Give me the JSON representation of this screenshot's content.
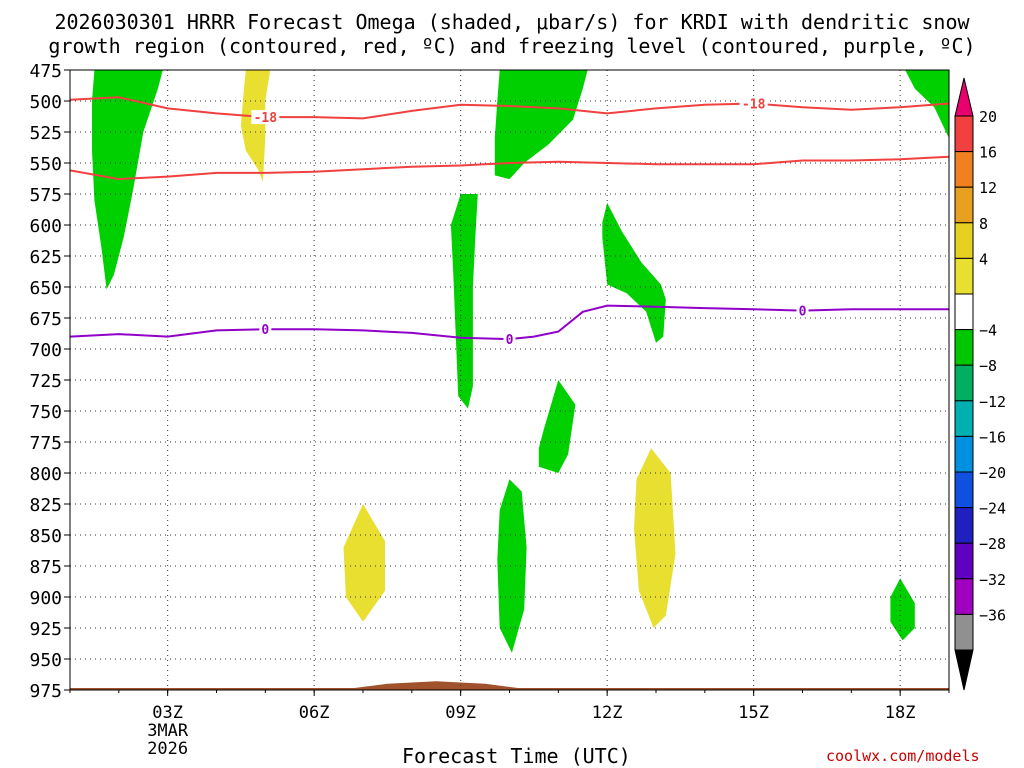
{
  "title": {
    "line1": "2026030301 HRRR Forecast Omega (shaded, μbar/s) for KRDI with dendritic snow",
    "line2": "growth region (contoured, red, ºC) and freezing level (contoured, purple, ºC)"
  },
  "xlabel": "Forecast Time (UTC)",
  "credit": "coolwx.com/models",
  "chart_data": {
    "type": "heatmap",
    "title": "2026030301 HRRR Forecast Omega (shaded, μbar/s) for KRDI with dendritic snow growth region (contoured, red, ºC) and freezing level (contoured, purple, ºC)",
    "xlabel": "Forecast Time (UTC)",
    "ylabel": "",
    "x_unit": "hours UTC from 00Z 3MAR2026",
    "xlim": [
      1,
      19
    ],
    "ylim": [
      975,
      475
    ],
    "y_ticks": [
      475,
      500,
      525,
      550,
      575,
      600,
      625,
      650,
      675,
      700,
      725,
      750,
      775,
      800,
      825,
      850,
      875,
      900,
      925,
      950,
      975
    ],
    "x_ticks": [
      {
        "x": 3,
        "label": "03Z"
      },
      {
        "x": 6,
        "label": "06Z"
      },
      {
        "x": 9,
        "label": "09Z"
      },
      {
        "x": 12,
        "label": "12Z"
      },
      {
        "x": 15,
        "label": "15Z"
      },
      {
        "x": 18,
        "label": "18Z"
      }
    ],
    "date_label": [
      "3MAR",
      "2026"
    ],
    "grid": true,
    "colorbar": {
      "labels": [
        "20",
        "16",
        "12",
        "8",
        "4",
        "−4",
        "−8",
        "−12",
        "−16",
        "−20",
        "−24",
        "−28",
        "−32",
        "−36"
      ],
      "colors": [
        "#e8006f",
        "#f04040",
        "#f08020",
        "#e8a020",
        "#e8d020",
        "#e8e030",
        "#ffffff",
        "#00c800",
        "#00b060",
        "#00b0b0",
        "#0090e0",
        "#1050e0",
        "#2020c0",
        "#6000c0",
        "#a000c0",
        "#909090",
        "#000000"
      ]
    },
    "shaded_regions": [
      {
        "level": "-8 to -4",
        "color": "#00d000",
        "points": [
          [
            1.5,
            475
          ],
          [
            2.9,
            475
          ],
          [
            2.8,
            490
          ],
          [
            2.5,
            525
          ],
          [
            2.3,
            570
          ],
          [
            2.1,
            610
          ],
          [
            1.9,
            640
          ],
          [
            1.75,
            652
          ],
          [
            1.65,
            620
          ],
          [
            1.5,
            580
          ],
          [
            1.45,
            540
          ],
          [
            1.45,
            500
          ]
        ]
      },
      {
        "level": "4 to 8",
        "color": "#e8df30",
        "points": [
          [
            4.6,
            475
          ],
          [
            5.1,
            475
          ],
          [
            5.0,
            500
          ],
          [
            5.0,
            530
          ],
          [
            4.95,
            565
          ],
          [
            4.85,
            555
          ],
          [
            4.6,
            540
          ],
          [
            4.5,
            520
          ],
          [
            4.55,
            495
          ]
        ]
      },
      {
        "level": "-8 to -4",
        "color": "#00d000",
        "points": [
          [
            9.8,
            475
          ],
          [
            11.6,
            475
          ],
          [
            11.5,
            490
          ],
          [
            11.3,
            515
          ],
          [
            10.8,
            535
          ],
          [
            10.3,
            550
          ],
          [
            10.0,
            563
          ],
          [
            9.7,
            560
          ],
          [
            9.7,
            530
          ],
          [
            9.75,
            500
          ]
        ]
      },
      {
        "level": "-8 to -4",
        "color": "#00d000",
        "points": [
          [
            18.1,
            475
          ],
          [
            19,
            475
          ],
          [
            19,
            530
          ],
          [
            18.7,
            505
          ],
          [
            18.3,
            490
          ]
        ]
      },
      {
        "level": "-8 to -4",
        "color": "#00d000",
        "points": [
          [
            9.0,
            575
          ],
          [
            9.35,
            575
          ],
          [
            9.3,
            610
          ],
          [
            9.25,
            650
          ],
          [
            9.25,
            700
          ],
          [
            9.25,
            730
          ],
          [
            9.15,
            748
          ],
          [
            8.95,
            738
          ],
          [
            8.9,
            690
          ],
          [
            8.85,
            640
          ],
          [
            8.8,
            600
          ]
        ]
      },
      {
        "level": "-8 to -4",
        "color": "#00d000",
        "points": [
          [
            12.0,
            582
          ],
          [
            12.3,
            605
          ],
          [
            12.7,
            630
          ],
          [
            13.1,
            648
          ],
          [
            13.2,
            660
          ],
          [
            13.15,
            690
          ],
          [
            13.0,
            695
          ],
          [
            12.8,
            670
          ],
          [
            12.4,
            655
          ],
          [
            12.0,
            648
          ],
          [
            11.9,
            610
          ],
          [
            11.9,
            598
          ]
        ]
      },
      {
        "level": "-8 to -4",
        "color": "#00d000",
        "points": [
          [
            10.7,
            765
          ],
          [
            11.0,
            725
          ],
          [
            11.35,
            745
          ],
          [
            11.2,
            785
          ],
          [
            11.0,
            800
          ],
          [
            10.6,
            795
          ],
          [
            10.6,
            780
          ]
        ]
      },
      {
        "level": "-8 to -4",
        "color": "#00d000",
        "points": [
          [
            10.0,
            805
          ],
          [
            10.25,
            815
          ],
          [
            10.35,
            860
          ],
          [
            10.3,
            910
          ],
          [
            10.05,
            945
          ],
          [
            9.8,
            925
          ],
          [
            9.75,
            870
          ],
          [
            9.8,
            830
          ]
        ]
      },
      {
        "level": "4 to 8",
        "color": "#e8df30",
        "points": [
          [
            12.9,
            780
          ],
          [
            13.3,
            800
          ],
          [
            13.4,
            865
          ],
          [
            13.2,
            915
          ],
          [
            12.95,
            925
          ],
          [
            12.65,
            895
          ],
          [
            12.55,
            845
          ],
          [
            12.6,
            805
          ]
        ]
      },
      {
        "level": "4 to 8",
        "color": "#e8df30",
        "points": [
          [
            7.0,
            825
          ],
          [
            7.45,
            855
          ],
          [
            7.45,
            895
          ],
          [
            7.0,
            920
          ],
          [
            6.65,
            900
          ],
          [
            6.6,
            860
          ]
        ]
      },
      {
        "level": "-8 to -4",
        "color": "#00d000",
        "points": [
          [
            18.0,
            885
          ],
          [
            18.3,
            905
          ],
          [
            18.3,
            925
          ],
          [
            18.05,
            935
          ],
          [
            17.8,
            920
          ],
          [
            17.8,
            900
          ]
        ]
      }
    ],
    "contours": [
      {
        "name": "-18",
        "color": "#f04040",
        "points": [
          [
            1,
            499
          ],
          [
            2,
            497
          ],
          [
            3,
            506
          ],
          [
            4,
            510
          ],
          [
            5,
            513
          ],
          [
            6,
            513
          ],
          [
            7,
            514
          ],
          [
            8,
            508
          ],
          [
            9,
            503
          ],
          [
            10,
            504
          ],
          [
            11,
            506
          ],
          [
            12,
            510
          ],
          [
            13,
            506
          ],
          [
            14,
            503
          ],
          [
            15,
            502
          ],
          [
            16,
            505
          ],
          [
            17,
            507
          ],
          [
            18,
            505
          ],
          [
            19,
            502
          ]
        ],
        "labels": [
          {
            "x": 5,
            "y": 513,
            "text": "-18"
          },
          {
            "x": 15,
            "y": 502,
            "text": "-18"
          }
        ]
      },
      {
        "name": "-18",
        "color": "#f04040",
        "points": [
          [
            1,
            556
          ],
          [
            2,
            563
          ],
          [
            3,
            561
          ],
          [
            4,
            558
          ],
          [
            5,
            558
          ],
          [
            6,
            557
          ],
          [
            7,
            555
          ],
          [
            8,
            553
          ],
          [
            9,
            552
          ],
          [
            10,
            550
          ],
          [
            11,
            549
          ],
          [
            12,
            550
          ],
          [
            13,
            551
          ],
          [
            14,
            551
          ],
          [
            15,
            551
          ],
          [
            16,
            548
          ],
          [
            17,
            548
          ],
          [
            18,
            547
          ],
          [
            19,
            545
          ]
        ],
        "labels": []
      },
      {
        "name": "0",
        "color": "#9000c8",
        "points": [
          [
            1,
            690
          ],
          [
            2,
            688
          ],
          [
            3,
            690
          ],
          [
            4,
            685
          ],
          [
            5,
            684
          ],
          [
            6,
            684
          ],
          [
            7,
            685
          ],
          [
            8,
            687
          ],
          [
            9,
            691
          ],
          [
            10,
            692
          ],
          [
            10.5,
            690
          ],
          [
            11,
            686
          ],
          [
            11.5,
            670
          ],
          [
            12,
            665
          ],
          [
            13,
            666
          ],
          [
            14,
            667
          ],
          [
            15,
            668
          ],
          [
            16,
            669
          ],
          [
            17,
            668
          ],
          [
            18,
            668
          ],
          [
            19,
            668
          ]
        ],
        "labels": [
          {
            "x": 5,
            "y": 684,
            "text": "0"
          },
          {
            "x": 10,
            "y": 692,
            "text": "0"
          },
          {
            "x": 16,
            "y": 669,
            "text": "0"
          }
        ]
      }
    ],
    "terrain": {
      "color": "#a0522d",
      "points": [
        [
          1,
          975
        ],
        [
          6.5,
          975
        ],
        [
          7.5,
          970
        ],
        [
          8.5,
          968
        ],
        [
          9.5,
          970
        ],
        [
          10.5,
          975
        ],
        [
          19,
          975
        ]
      ]
    }
  }
}
